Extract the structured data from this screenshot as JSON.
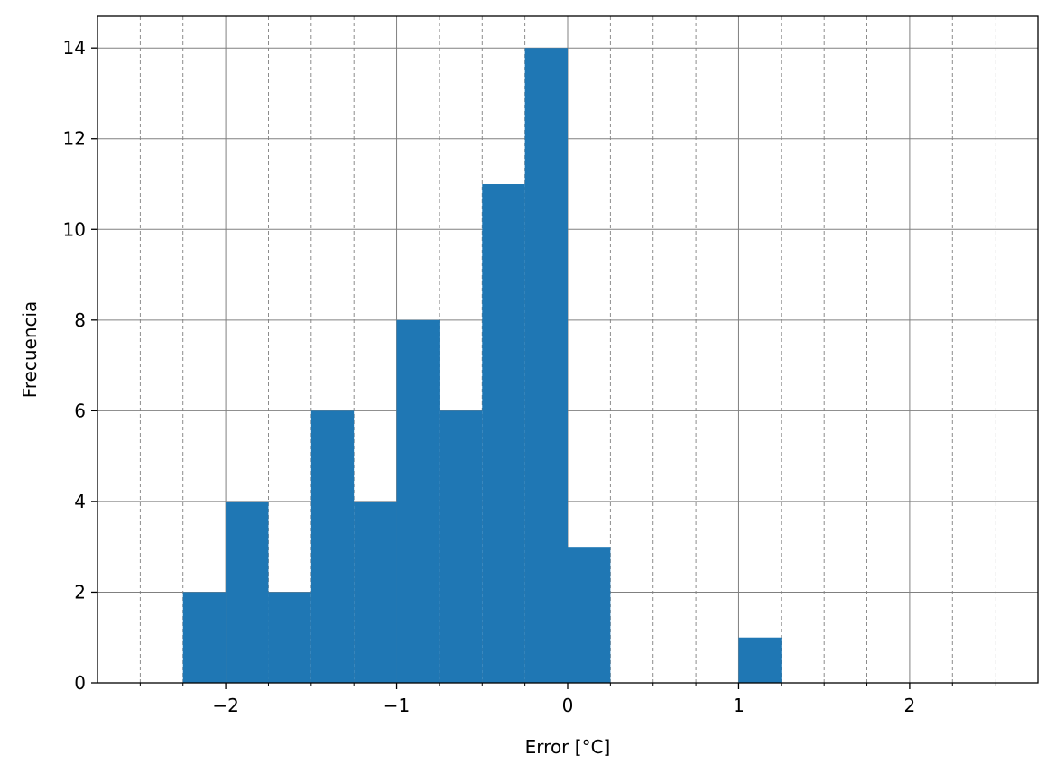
{
  "chart_data": {
    "type": "bar",
    "title": "",
    "xlabel": "Error [°C]",
    "ylabel": "Frecuencia",
    "xlim": [
      -2.75,
      2.75
    ],
    "ylim": [
      0,
      14.7
    ],
    "x_major_ticks": [
      -2,
      -1,
      0,
      1,
      2
    ],
    "x_tick_labels": [
      "−2",
      "−1",
      "0",
      "1",
      "2"
    ],
    "x_minor_ticks": [
      -2.5,
      -2.25,
      -1.75,
      -1.5,
      -1.25,
      -0.75,
      -0.5,
      -0.25,
      0.25,
      0.5,
      0.75,
      1.25,
      1.5,
      1.75,
      2.25,
      2.5
    ],
    "y_ticks": [
      0,
      2,
      4,
      6,
      8,
      10,
      12,
      14
    ],
    "y_tick_labels": [
      "0",
      "2",
      "4",
      "6",
      "8",
      "10",
      "12",
      "14"
    ],
    "grid": true,
    "bar_color": "#1f77b4",
    "bins": [
      {
        "start": -2.25,
        "end": -2.0,
        "count": 2
      },
      {
        "start": -2.0,
        "end": -1.75,
        "count": 4
      },
      {
        "start": -1.75,
        "end": -1.5,
        "count": 2
      },
      {
        "start": -1.5,
        "end": -1.25,
        "count": 6
      },
      {
        "start": -1.25,
        "end": -1.0,
        "count": 4
      },
      {
        "start": -1.0,
        "end": -0.75,
        "count": 8
      },
      {
        "start": -0.75,
        "end": -0.5,
        "count": 6
      },
      {
        "start": -0.5,
        "end": -0.25,
        "count": 11
      },
      {
        "start": -0.25,
        "end": 0.0,
        "count": 14
      },
      {
        "start": 0.0,
        "end": 0.25,
        "count": 3
      },
      {
        "start": 1.0,
        "end": 1.25,
        "count": 1
      }
    ]
  }
}
